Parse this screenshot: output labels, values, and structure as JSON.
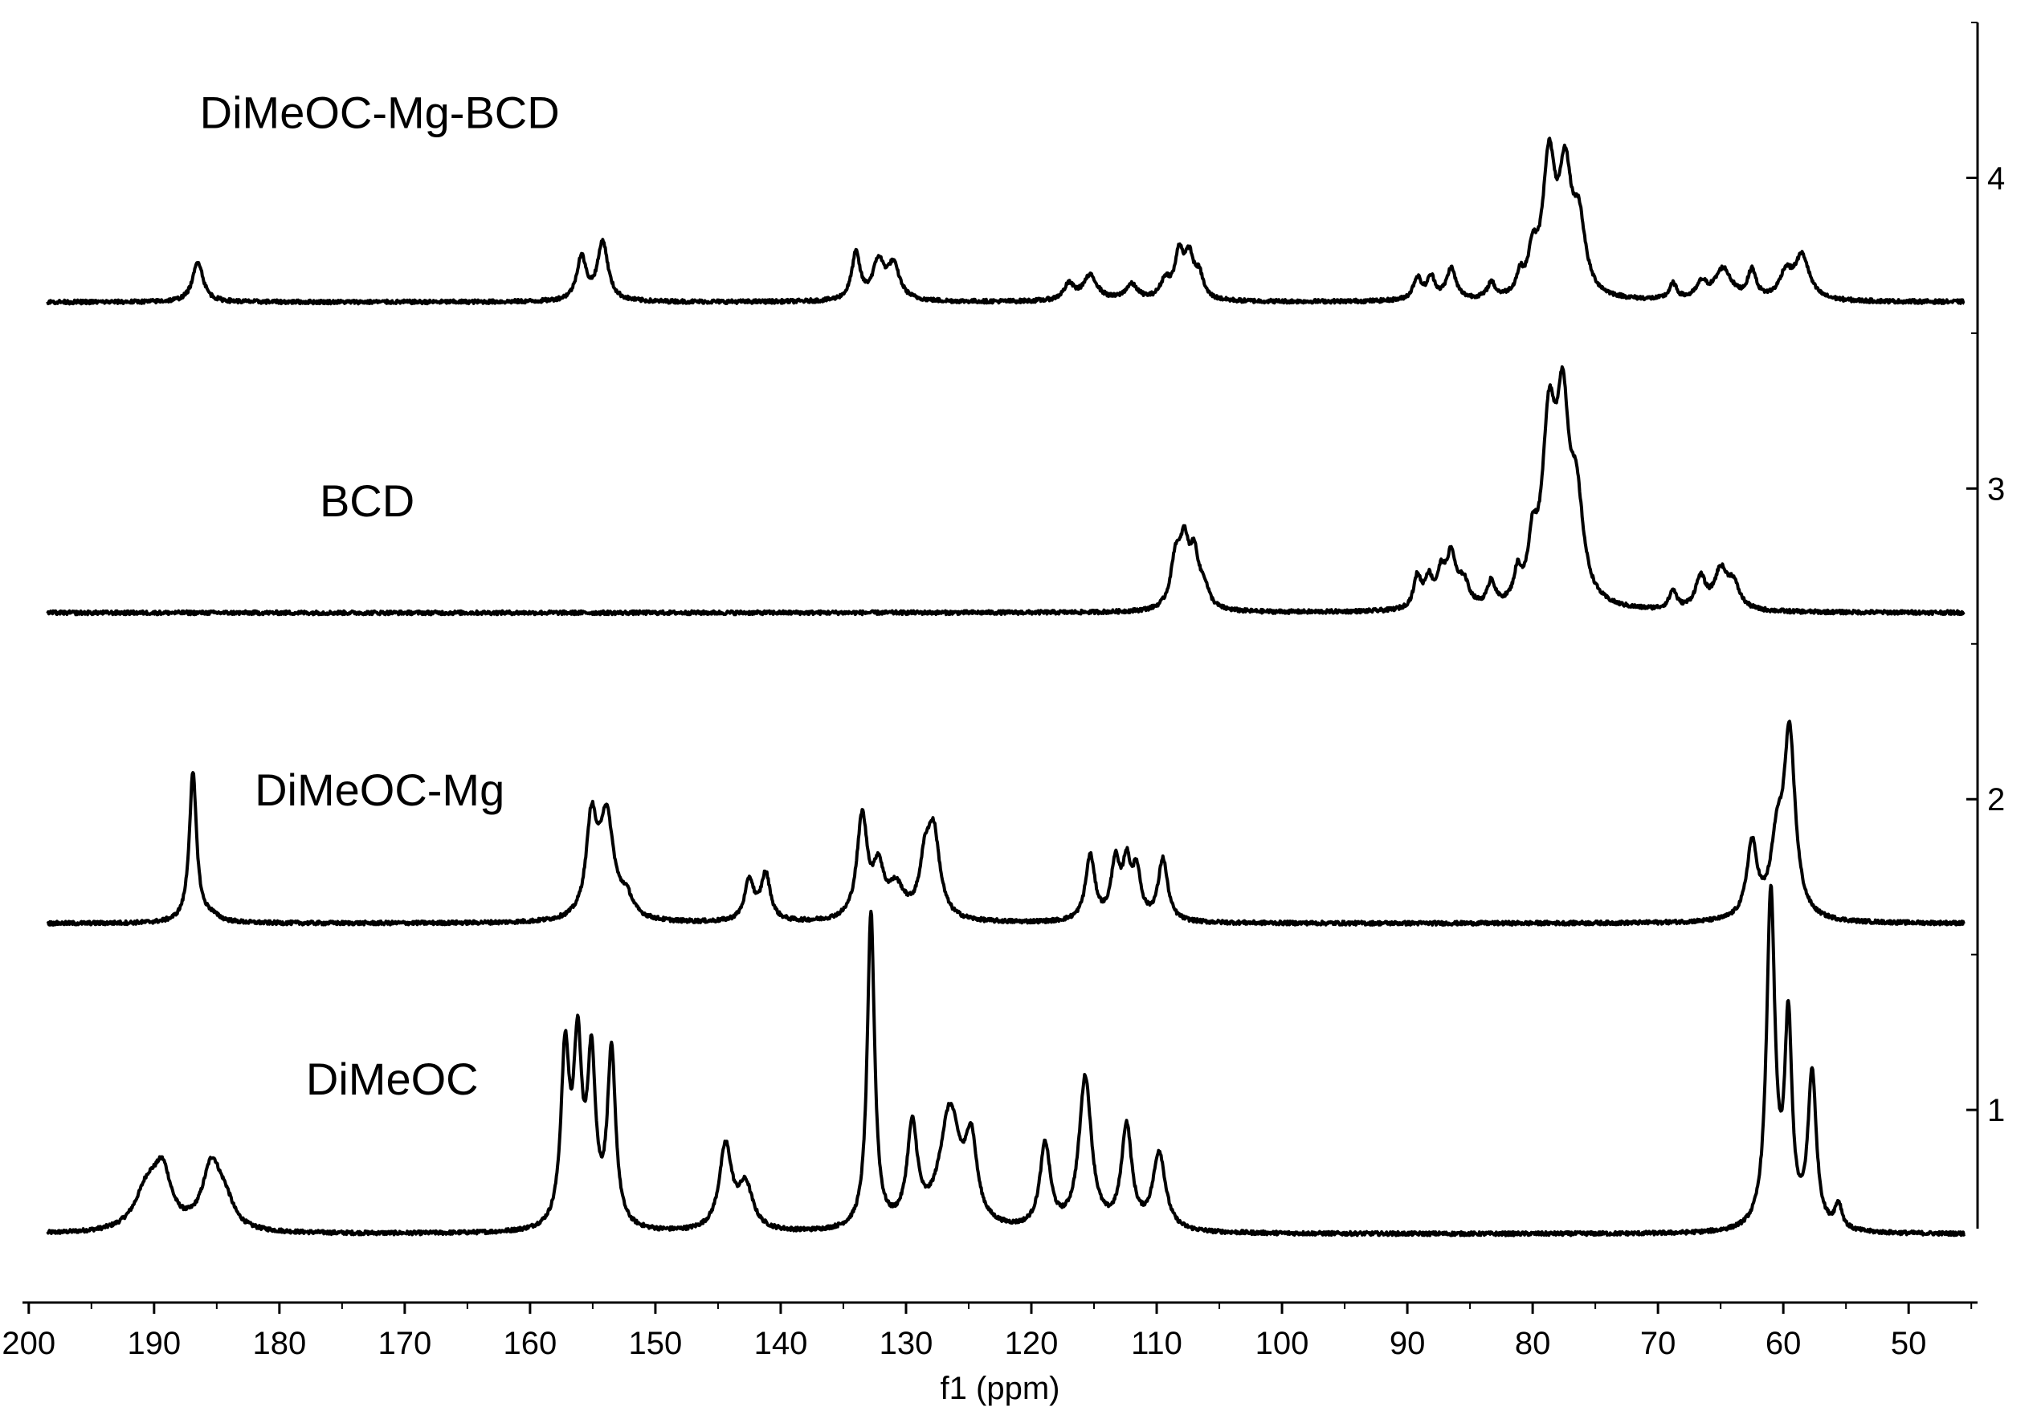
{
  "chart_data": {
    "type": "line",
    "title": "",
    "xlabel": "f1 (ppm)",
    "ylabel": "",
    "x_reversed": true,
    "xlim": [
      200.5,
      44.5
    ],
    "ylim": [
      0.38,
      4.5
    ],
    "grid": false,
    "x_ticks": [
      200,
      190,
      180,
      170,
      160,
      150,
      140,
      130,
      120,
      110,
      100,
      90,
      80,
      70,
      60,
      50
    ],
    "x_tick_labels": [
      "200",
      "190",
      "180",
      "170",
      "160",
      "150",
      "140",
      "130",
      "120",
      "110",
      "100",
      "90",
      "80",
      "70",
      "60",
      "50"
    ],
    "y_ticks": [
      1,
      2,
      3,
      4
    ],
    "y_tick_labels": [
      "1",
      "2",
      "3",
      "4"
    ],
    "y_axis_side": "right",
    "series": [
      {
        "name": "DiMeOC",
        "label_position": [
          171,
          1.05
        ],
        "baseline": 0.6,
        "peaks": [
          [
            190.5,
            0.14,
            1.2
          ],
          [
            189.3,
            0.16,
            0.8
          ],
          [
            185.4,
            0.21,
            0.9
          ],
          [
            184.3,
            0.07,
            0.8
          ],
          [
            157.2,
            0.55,
            0.4
          ],
          [
            156.2,
            0.55,
            0.4
          ],
          [
            155.1,
            0.52,
            0.4
          ],
          [
            153.5,
            0.56,
            0.4
          ],
          [
            144.4,
            0.27,
            0.6
          ],
          [
            142.8,
            0.14,
            0.7
          ],
          [
            132.8,
            1.02,
            0.35
          ],
          [
            129.5,
            0.32,
            0.5
          ],
          [
            126.5,
            0.38,
            1.0
          ],
          [
            124.8,
            0.25,
            0.55
          ],
          [
            118.9,
            0.27,
            0.5
          ],
          [
            115.7,
            0.49,
            0.6
          ],
          [
            112.4,
            0.33,
            0.5
          ],
          [
            109.8,
            0.25,
            0.6
          ],
          [
            61.0,
            1.08,
            0.4
          ],
          [
            59.6,
            0.65,
            0.35
          ],
          [
            57.7,
            0.5,
            0.4
          ],
          [
            55.6,
            0.08,
            0.35
          ]
        ]
      },
      {
        "name": "DiMeOC-Mg",
        "label_position": [
          172,
          1.98
        ],
        "baseline": 1.6,
        "peaks": [
          [
            186.9,
            0.48,
            0.35
          ],
          [
            185.5,
            0.02,
            0.8
          ],
          [
            155.1,
            0.3,
            0.5
          ],
          [
            153.9,
            0.33,
            0.7
          ],
          [
            152.3,
            0.06,
            0.6
          ],
          [
            142.5,
            0.13,
            0.45
          ],
          [
            141.2,
            0.15,
            0.45
          ],
          [
            133.5,
            0.33,
            0.5
          ],
          [
            132.2,
            0.15,
            0.5
          ],
          [
            130.8,
            0.1,
            0.8
          ],
          [
            128.5,
            0.15,
            0.5
          ],
          [
            127.8,
            0.27,
            0.6
          ],
          [
            115.3,
            0.21,
            0.45
          ],
          [
            113.3,
            0.18,
            0.4
          ],
          [
            112.4,
            0.17,
            0.4
          ],
          [
            111.6,
            0.15,
            0.4
          ],
          [
            109.5,
            0.2,
            0.45
          ],
          [
            62.5,
            0.24,
            0.5
          ],
          [
            60.5,
            0.22,
            0.6
          ],
          [
            59.5,
            0.58,
            0.55
          ]
        ]
      },
      {
        "name": "BCD",
        "label_position": [
          173,
          2.91
        ],
        "baseline": 2.6,
        "peaks": [
          [
            108.5,
            0.15,
            0.45
          ],
          [
            107.8,
            0.19,
            0.45
          ],
          [
            107.0,
            0.16,
            0.45
          ],
          [
            106.2,
            0.06,
            0.45
          ],
          [
            89.2,
            0.1,
            0.35
          ],
          [
            88.3,
            0.09,
            0.4
          ],
          [
            87.3,
            0.1,
            0.4
          ],
          [
            86.5,
            0.16,
            0.45
          ],
          [
            85.5,
            0.08,
            0.5
          ],
          [
            83.3,
            0.08,
            0.35
          ],
          [
            81.2,
            0.09,
            0.35
          ],
          [
            80.0,
            0.16,
            0.4
          ],
          [
            78.7,
            0.55,
            0.65
          ],
          [
            77.6,
            0.56,
            0.6
          ],
          [
            76.5,
            0.3,
            0.65
          ],
          [
            68.8,
            0.06,
            0.35
          ],
          [
            66.6,
            0.1,
            0.5
          ],
          [
            65.0,
            0.12,
            0.6
          ],
          [
            64.0,
            0.08,
            0.6
          ]
        ]
      },
      {
        "name": "DiMeOC-Mg-BCD",
        "label_position": [
          172,
          4.16
        ],
        "baseline": 3.6,
        "peaks": [
          [
            186.5,
            0.13,
            0.5
          ],
          [
            155.9,
            0.14,
            0.45
          ],
          [
            154.2,
            0.19,
            0.5
          ],
          [
            134.0,
            0.15,
            0.4
          ],
          [
            132.2,
            0.12,
            0.55
          ],
          [
            131.0,
            0.11,
            0.6
          ],
          [
            117.0,
            0.05,
            0.5
          ],
          [
            115.3,
            0.08,
            0.7
          ],
          [
            112.0,
            0.05,
            0.6
          ],
          [
            109.3,
            0.06,
            0.5
          ],
          [
            108.2,
            0.14,
            0.4
          ],
          [
            107.4,
            0.13,
            0.45
          ],
          [
            106.6,
            0.07,
            0.4
          ],
          [
            89.2,
            0.07,
            0.4
          ],
          [
            88.1,
            0.07,
            0.4
          ],
          [
            86.5,
            0.1,
            0.45
          ],
          [
            83.3,
            0.05,
            0.35
          ],
          [
            81.0,
            0.06,
            0.35
          ],
          [
            80.0,
            0.12,
            0.4
          ],
          [
            78.7,
            0.43,
            0.6
          ],
          [
            77.4,
            0.37,
            0.6
          ],
          [
            76.3,
            0.22,
            0.6
          ],
          [
            68.8,
            0.05,
            0.35
          ],
          [
            66.5,
            0.05,
            0.5
          ],
          [
            64.8,
            0.1,
            0.8
          ],
          [
            62.5,
            0.09,
            0.4
          ],
          [
            59.8,
            0.08,
            0.6
          ],
          [
            58.5,
            0.14,
            0.7
          ]
        ]
      }
    ]
  }
}
